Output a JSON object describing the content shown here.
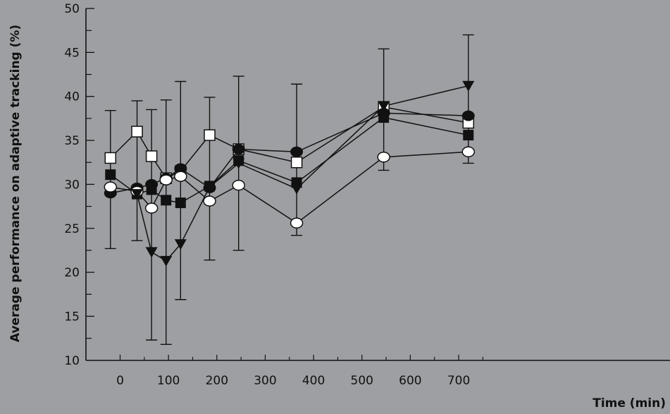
{
  "chart_data": {
    "type": "line",
    "title": "",
    "xlabel": "Time (min)",
    "ylabel": "Average performance on adaptive tracking (%)",
    "xlim": [
      -45,
      745
    ],
    "ylim": [
      10,
      50
    ],
    "x_ticks": [
      0,
      100,
      200,
      300,
      400,
      500,
      600,
      700
    ],
    "y_ticks": [
      10,
      15,
      20,
      25,
      30,
      35,
      40,
      45,
      50
    ],
    "grid": false,
    "legend": "none",
    "colors": {
      "background": "#9d9fa2",
      "ink": "#111111",
      "open_fill": "#ffffff"
    },
    "series": [
      {
        "marker": "open-square",
        "x": [
          -20,
          35,
          65,
          95,
          125,
          185,
          245,
          365,
          545,
          720
        ],
        "y": [
          33.0,
          36.0,
          33.2,
          30.7,
          31.5,
          35.6,
          34.0,
          32.5,
          38.8,
          37.0
        ]
      },
      {
        "marker": "filled-circle",
        "x": [
          -20,
          35,
          65,
          95,
          125,
          185,
          245,
          365,
          545,
          720
        ],
        "y": [
          29.0,
          29.6,
          30.0,
          30.7,
          31.8,
          29.6,
          34.0,
          33.7,
          38.1,
          37.8
        ],
        "error_bars": [
          {
            "x": -20,
            "low": 22.7,
            "high": 38.4
          },
          {
            "x": 35,
            "low": 23.6,
            "high": 39.5
          },
          {
            "x": 365,
            "low": 24.2,
            "high": 41.4
          },
          {
            "x": 720,
            "low": 32.4,
            "high": 47.0
          }
        ]
      },
      {
        "marker": "filled-square",
        "x": [
          -20,
          35,
          65,
          95,
          125,
          185,
          245,
          365,
          545,
          720
        ],
        "y": [
          31.1,
          28.9,
          29.4,
          28.2,
          27.9,
          29.8,
          32.7,
          30.2,
          37.6,
          35.6
        ]
      },
      {
        "marker": "open-circle",
        "x": [
          -20,
          35,
          65,
          95,
          125,
          185,
          245,
          365,
          545,
          720
        ],
        "y": [
          29.7,
          29.2,
          27.3,
          30.5,
          30.9,
          28.1,
          29.9,
          25.6,
          33.1,
          33.7
        ],
        "error_bars": [
          {
            "x": 65,
            "low": 12.3,
            "high": 38.5
          },
          {
            "x": 125,
            "low": 16.9,
            "high": 41.7
          },
          {
            "x": 185,
            "low": 21.4,
            "high": 39.9
          },
          {
            "x": 245,
            "low": 22.5,
            "high": 42.3
          },
          {
            "x": 545,
            "low": 31.6,
            "high": 45.4
          }
        ]
      },
      {
        "marker": "filled-triangle-down",
        "x": [
          35,
          65,
          95,
          125,
          185,
          245,
          365,
          545,
          720
        ],
        "y": [
          28.9,
          22.3,
          21.3,
          23.2,
          29.7,
          32.4,
          29.5,
          38.9,
          41.2
        ],
        "error_bars": [
          {
            "x": 95,
            "low": 11.8,
            "high": 39.6
          }
        ]
      }
    ]
  }
}
